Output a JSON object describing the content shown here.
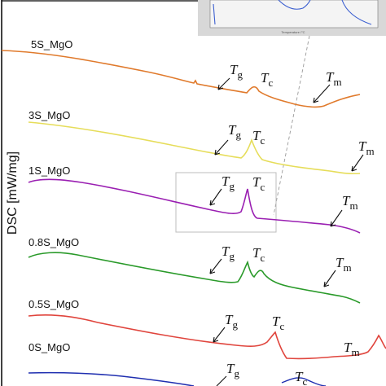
{
  "chart_data": {
    "type": "line",
    "ylabel": "DSC [mW/mg]",
    "xlabel": "",
    "inset_tick_label": "Temperature /°C",
    "grid": false,
    "legend": "none",
    "colors": {
      "5S_MgO": "#e07a2c",
      "3S_MgO": "#e6dd5a",
      "1S_MgO": "#9a1fb2",
      "0.8S_MgO": "#2a9a2a",
      "0.5S_MgO": "#e0453d",
      "0S_MgO": "#1f2fb0",
      "inset_curve": "#3b5fd0",
      "guide_line": "#9a9a9a"
    },
    "series": [
      {
        "name": "5S_MgO",
        "markers": [
          "Tg",
          "Tc",
          "Tm"
        ]
      },
      {
        "name": "3S_MgO",
        "markers": [
          "Tg",
          "Tc",
          "Tm"
        ]
      },
      {
        "name": "1S_MgO",
        "markers": [
          "Tg",
          "Tc",
          "Tm"
        ]
      },
      {
        "name": "0.8S_MgO",
        "markers": [
          "Tg",
          "Tc",
          "Tm"
        ]
      },
      {
        "name": "0.5S_MgO",
        "markers": [
          "Tg",
          "Tc",
          "Tm"
        ]
      },
      {
        "name": "0S_MgO",
        "markers": [
          "Tg",
          "Tc"
        ]
      }
    ],
    "inset": {
      "shown": true,
      "curve": "magnified 1S_MgO region"
    }
  },
  "annotation_symbol": "T",
  "subscripts": {
    "Tg": "g",
    "Tc": "c",
    "Tm": "m"
  }
}
